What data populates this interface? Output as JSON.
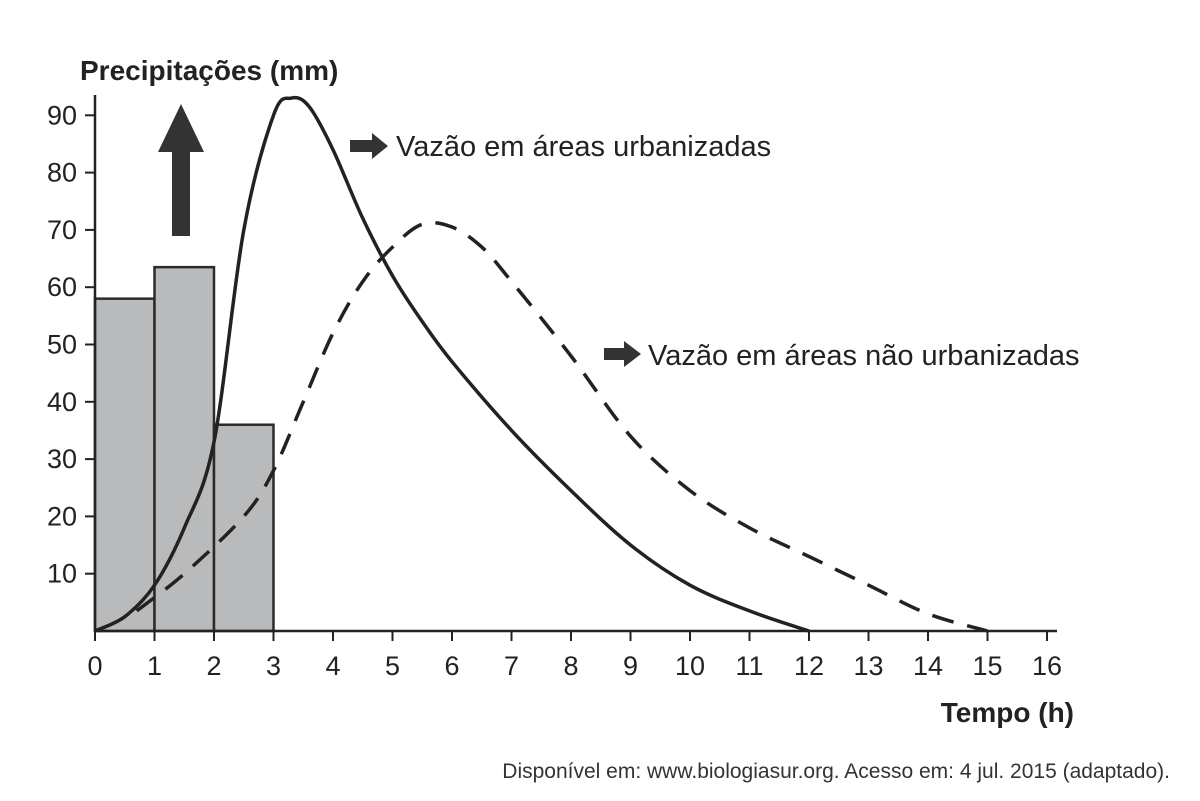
{
  "chart_data": {
    "type": "bar",
    "ylabel": "Precipitações (mm)",
    "xlabel": "Tempo (h)",
    "xlim": [
      0,
      16
    ],
    "ylim": [
      0,
      90
    ],
    "x_ticks": [
      "0",
      "1",
      "2",
      "3",
      "4",
      "5",
      "6",
      "7",
      "8",
      "9",
      "10",
      "11",
      "12",
      "13",
      "14",
      "15",
      "16"
    ],
    "y_ticks": [
      "10",
      "20",
      "30",
      "40",
      "50",
      "60",
      "70",
      "80",
      "90"
    ],
    "bars": [
      {
        "x0": 0,
        "x1": 1,
        "value": 58
      },
      {
        "x0": 1,
        "x1": 2,
        "value": 63.5
      },
      {
        "x0": 2,
        "x1": 3,
        "value": 36
      }
    ],
    "series": [
      {
        "name": "Vazão em áreas urbanizadas",
        "style": "solid",
        "points": [
          [
            0,
            0
          ],
          [
            0.5,
            2.5
          ],
          [
            1,
            8
          ],
          [
            1.5,
            18
          ],
          [
            2,
            33
          ],
          [
            2.5,
            70
          ],
          [
            3,
            90
          ],
          [
            3.3,
            93
          ],
          [
            3.6,
            91.5
          ],
          [
            4,
            84
          ],
          [
            4.5,
            72
          ],
          [
            5,
            62
          ],
          [
            5.5,
            54
          ],
          [
            6,
            47
          ],
          [
            7,
            35
          ],
          [
            8,
            24.5
          ],
          [
            9,
            15
          ],
          [
            10,
            8
          ],
          [
            11,
            3.5
          ],
          [
            12,
            0
          ]
        ]
      },
      {
        "name": "Vazão em áreas não urbanizadas",
        "style": "dashed",
        "points": [
          [
            0.7,
            3.5
          ],
          [
            1.5,
            10
          ],
          [
            2.5,
            20
          ],
          [
            3,
            28
          ],
          [
            3.5,
            40
          ],
          [
            4,
            52
          ],
          [
            4.5,
            61
          ],
          [
            5,
            67
          ],
          [
            5.5,
            71
          ],
          [
            6,
            70.5
          ],
          [
            6.5,
            67
          ],
          [
            7,
            61
          ],
          [
            8,
            48
          ],
          [
            9,
            34
          ],
          [
            10,
            24.5
          ],
          [
            11,
            18
          ],
          [
            12,
            13
          ],
          [
            13,
            8
          ],
          [
            14,
            3
          ],
          [
            15,
            0
          ]
        ]
      }
    ],
    "annotations": [
      {
        "text": "Vazão em áreas urbanizadas",
        "series": 0
      },
      {
        "text": "Vazão em áreas não urbanizadas",
        "series": 1
      }
    ],
    "colors": {
      "bar_fill": "#b9babc",
      "bar_stroke": "#2b2b2b",
      "line": "#222222",
      "arrow": "#333333"
    },
    "grid": false,
    "source": "Disponível em: www.biologiasur.org. Acesso em: 4 jul. 2015 (adaptado)."
  }
}
